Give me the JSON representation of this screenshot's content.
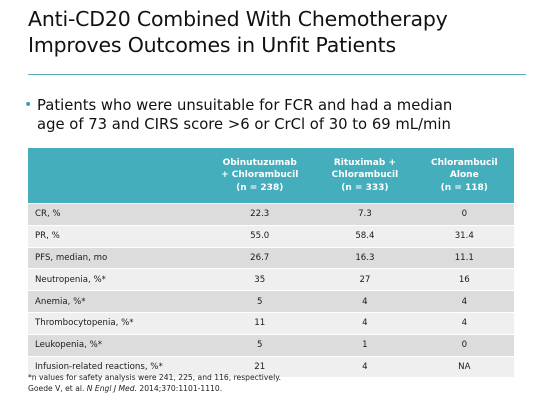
{
  "title": {
    "line1": "Anti-CD20 Combined With Chemotherapy",
    "line2": "Improves Outcomes in Unfit Patients"
  },
  "bullet": {
    "line1": "Patients who were unsuitable for FCR and had a median",
    "line2": "age of 73 and CIRS score >6 or CrCl of 30 to 69 mL/min"
  },
  "table": {
    "headers": [
      {
        "line1": "",
        "line2": "",
        "line3": ""
      },
      {
        "line1": "Obinutuzumab",
        "line2": "+ Chlorambucil",
        "line3": "(n = 238)"
      },
      {
        "line1": "Rituximab +",
        "line2": "Chlorambucil",
        "line3": "(n = 333)"
      },
      {
        "line1": "Chlorambucil",
        "line2": "Alone",
        "line3": "(n = 118)"
      }
    ],
    "rows": [
      {
        "label": "CR, %",
        "v1": "22.3",
        "v2": "7.3",
        "v3": "0"
      },
      {
        "label": "PR, %",
        "v1": "55.0",
        "v2": "58.4",
        "v3": "31.4"
      },
      {
        "label": "PFS, median, mo",
        "v1": "26.7",
        "v2": "16.3",
        "v3": "11.1"
      },
      {
        "label": "Neutropenia, %*",
        "v1": "35",
        "v2": "27",
        "v3": "16"
      },
      {
        "label": "Anemia, %*",
        "v1": "5",
        "v2": "4",
        "v3": "4"
      },
      {
        "label": "Thrombocytopenia, %*",
        "v1": "11",
        "v2": "4",
        "v3": "4"
      },
      {
        "label": "Leukopenia, %*",
        "v1": "5",
        "v2": "1",
        "v3": "0"
      },
      {
        "label": "Infusion-related reactions, %*",
        "v1": "21",
        "v2": "4",
        "v3": "NA"
      }
    ]
  },
  "footnote": {
    "line1": "*n values for safety analysis were 241, 225, and 116, respectively.",
    "ref_authors": "Goede V, et al. ",
    "ref_journal": "N Engl J Med.",
    "ref_citation": " 2014;370:1101-1110."
  },
  "colors": {
    "header_fill": "#45aebd",
    "title_rule": "#5aa9b6",
    "bullet": "#3aa0b0",
    "row_dark": "#dcdcdc",
    "row_light": "#efefef"
  }
}
